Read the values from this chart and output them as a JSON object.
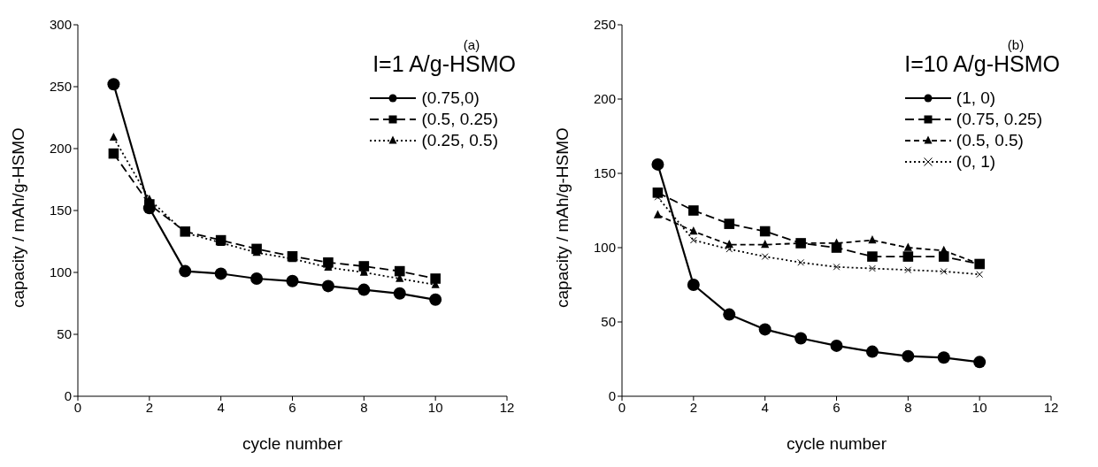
{
  "chart_data": [
    {
      "type": "line",
      "xlabel": "cycle number",
      "ylabel": "capacity / mAh/g-HSMO",
      "legend_title": "I=1 A/g-HSMO",
      "annotations": [
        "(a)"
      ],
      "x": [
        1,
        2,
        3,
        4,
        5,
        6,
        7,
        8,
        9,
        10
      ],
      "xlim": [
        0,
        12
      ],
      "xticks": [
        0,
        2,
        4,
        6,
        8,
        10,
        12
      ],
      "ylim": [
        0,
        300
      ],
      "yticks": [
        0,
        50,
        100,
        150,
        200,
        250,
        300
      ],
      "grid": false,
      "legend": "top right",
      "series": [
        {
          "name": "(0.75,0)",
          "color": "#000000",
          "marker": "circle",
          "line_style": "solid",
          "values": [
            252,
            152,
            101,
            99,
            95,
            93,
            89,
            86,
            83,
            78
          ]
        },
        {
          "name": "(0.5, 0.25)",
          "color": "#000000",
          "marker": "square",
          "line_style": "dashed",
          "values": [
            196,
            155,
            133,
            126,
            119,
            113,
            108,
            105,
            101,
            95
          ]
        },
        {
          "name": "(0.25, 0.5)",
          "color": "#000000",
          "marker": "triangle",
          "line_style": "dotted",
          "values": [
            209,
            159,
            132,
            124,
            116,
            111,
            104,
            100,
            95,
            90
          ]
        }
      ]
    },
    {
      "type": "line",
      "xlabel": "cycle number",
      "ylabel": "capacity / mAh/g-HSMO",
      "legend_title": "I=10 A/g-HSMO",
      "annotations": [
        "(b)"
      ],
      "x": [
        1,
        2,
        3,
        4,
        5,
        6,
        7,
        8,
        9,
        10
      ],
      "xlim": [
        0,
        12
      ],
      "xticks": [
        0,
        2,
        4,
        6,
        8,
        10,
        12
      ],
      "ylim": [
        0,
        250
      ],
      "yticks": [
        0,
        50,
        100,
        150,
        200,
        250
      ],
      "grid": false,
      "legend": "top right",
      "series": [
        {
          "name": "(1, 0)",
          "color": "#000000",
          "marker": "circle",
          "line_style": "solid",
          "values": [
            156,
            75,
            55,
            45,
            39,
            34,
            30,
            27,
            26,
            23
          ]
        },
        {
          "name": "(0.75, 0.25)",
          "color": "#000000",
          "marker": "square",
          "line_style": "dashed",
          "values": [
            137,
            125,
            116,
            111,
            103,
            100,
            94,
            94,
            94,
            89
          ]
        },
        {
          "name": "(0.5, 0.5)",
          "color": "#000000",
          "marker": "triangle",
          "line_style": "dashed",
          "values": [
            122,
            111,
            102,
            102,
            103,
            103,
            105,
            100,
            98,
            89
          ]
        },
        {
          "name": "(0, 1)",
          "color": "#000000",
          "marker": "cross",
          "line_style": "dotted",
          "values": [
            134,
            105,
            99,
            94,
            90,
            87,
            86,
            85,
            84,
            82
          ]
        }
      ]
    }
  ]
}
